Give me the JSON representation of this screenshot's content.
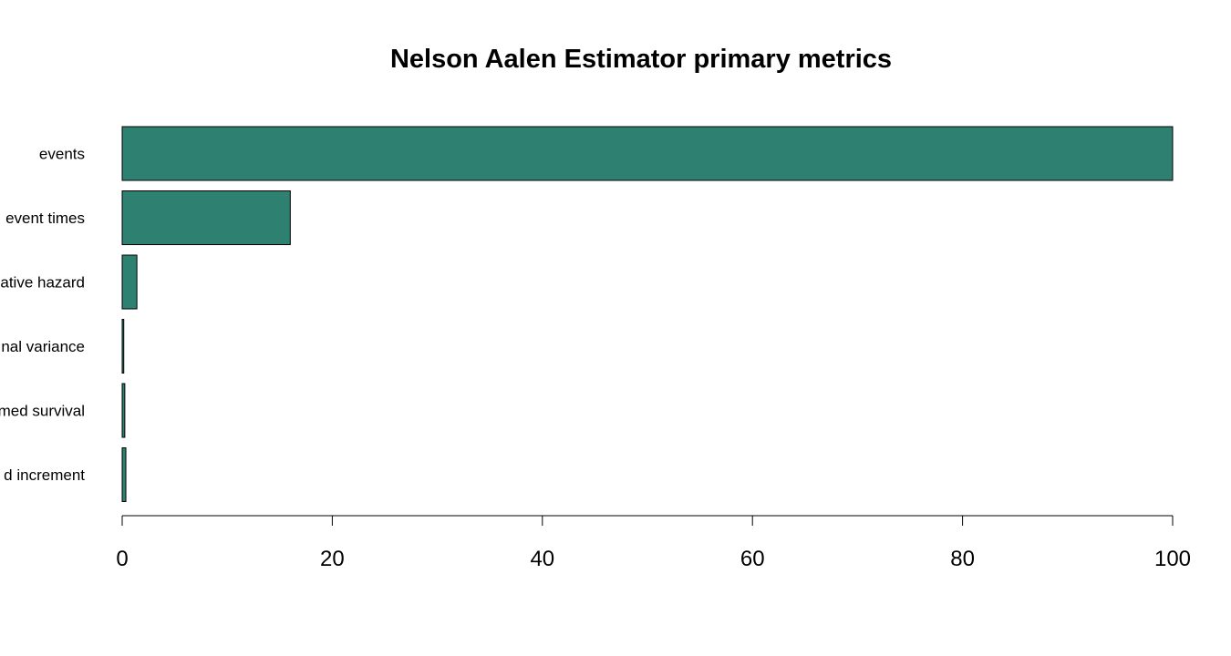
{
  "chart_data": {
    "type": "bar",
    "orientation": "horizontal",
    "title": "Nelson Aalen Estimator primary metrics",
    "xlabel": "",
    "ylabel": "",
    "categories": [
      "events",
      "event times",
      "ative hazard",
      "nal variance",
      "med survival",
      "d increment"
    ],
    "values": [
      100,
      16,
      1.4,
      0.15,
      0.25,
      0.35
    ],
    "xlim": [
      0,
      100
    ],
    "x_ticks": [
      0,
      20,
      40,
      60,
      80,
      100
    ],
    "bar_color": "#2e8070",
    "grid": false,
    "legend": "none"
  }
}
